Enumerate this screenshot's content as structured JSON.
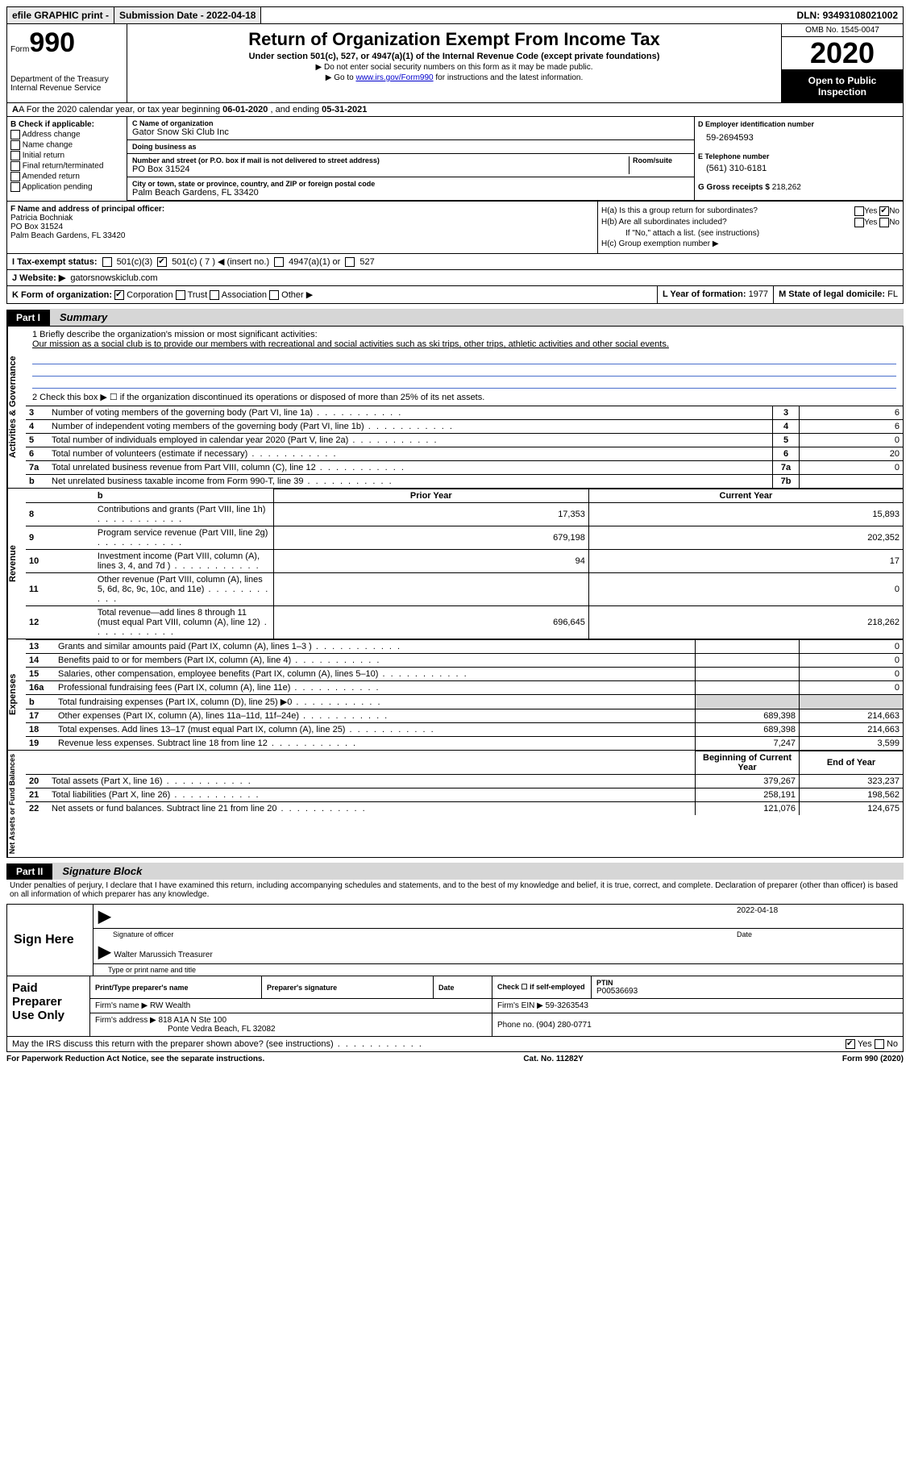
{
  "topbar": {
    "efile": "efile GRAPHIC print -",
    "submission": "Submission Date - 2022-04-18",
    "dln_label": "DLN:",
    "dln": "93493108021002"
  },
  "header": {
    "form_small": "Form",
    "form_big": "990",
    "dept": "Department of the Treasury\nInternal Revenue Service",
    "title": "Return of Organization Exempt From Income Tax",
    "sub": "Under section 501(c), 527, or 4947(a)(1) of the Internal Revenue Code (except private foundations)",
    "nossn": "▶ Do not enter social security numbers on this form as it may be made public.",
    "goto_pre": "▶ Go to ",
    "goto_link": "www.irs.gov/Form990",
    "goto_post": " for instructions and the latest information.",
    "omb": "OMB No. 1545-0047",
    "year": "2020",
    "open": "Open to Public Inspection"
  },
  "rowA": {
    "pre": "A For the 2020 calendar year, or tax year beginning ",
    "begin": "06-01-2020",
    "mid": " , and ending ",
    "end": "05-31-2021"
  },
  "colB": {
    "title": "B Check if applicable:",
    "items": [
      "Address change",
      "Name change",
      "Initial return",
      "Final return/terminated",
      "Amended return",
      "Application pending"
    ]
  },
  "colC": {
    "name_lbl": "C Name of organization",
    "name": "Gator Snow Ski Club Inc",
    "dba_lbl": "Doing business as",
    "dba": "",
    "street_lbl": "Number and street (or P.O. box if mail is not delivered to street address)",
    "room_lbl": "Room/suite",
    "street": "PO Box 31524",
    "city_lbl": "City or town, state or province, country, and ZIP or foreign postal code",
    "city": "Palm Beach Gardens, FL  33420"
  },
  "colD": {
    "ein_lbl": "D Employer identification number",
    "ein": "59-2694593",
    "phone_lbl": "E Telephone number",
    "phone": "(561) 310-6181",
    "gross_lbl": "G Gross receipts $",
    "gross": "218,262"
  },
  "colF": {
    "lbl": "F Name and address of principal officer:",
    "name": "Patricia Bochniak",
    "street": "PO Box 31524",
    "city": "Palm Beach Gardens, FL  33420"
  },
  "colH": {
    "ha": "H(a)  Is this a group return for subordinates?",
    "hb": "H(b)  Are all subordinates included?",
    "hb_note": "If \"No,\" attach a list. (see instructions)",
    "hc": "H(c)  Group exemption number ▶",
    "yes": "Yes",
    "no": "No"
  },
  "rowI": {
    "lbl": "I  Tax-exempt status:",
    "o1": "501(c)(3)",
    "o2": "501(c) ( 7 ) ◀ (insert no.)",
    "o3": "4947(a)(1) or",
    "o4": "527"
  },
  "rowJ": {
    "lbl": "J  Website: ▶",
    "val": "gatorsnowskiclub.com"
  },
  "rowK": {
    "lbl": "K Form of organization:",
    "corp": "Corporation",
    "trust": "Trust",
    "assoc": "Association",
    "other": "Other ▶",
    "L_lbl": "L Year of formation:",
    "L_val": "1977",
    "M_lbl": "M State of legal domicile:",
    "M_val": "FL"
  },
  "part1": {
    "tag": "Part I",
    "title": "Summary"
  },
  "activities": {
    "vert": "Activities & Governance",
    "l1_lbl": "1  Briefly describe the organization's mission or most significant activities:",
    "l1_val": "Our mission as a social club is to provide our members with recreational and social activities such as ski trips, other trips, athletic activities and other social events.",
    "l2": "2  Check this box ▶ ☐  if the organization discontinued its operations or disposed of more than 25% of its net assets.",
    "rows": [
      {
        "n": "3",
        "t": "Number of voting members of the governing body (Part VI, line 1a)",
        "b": "3",
        "v": "6"
      },
      {
        "n": "4",
        "t": "Number of independent voting members of the governing body (Part VI, line 1b)",
        "b": "4",
        "v": "6"
      },
      {
        "n": "5",
        "t": "Total number of individuals employed in calendar year 2020 (Part V, line 2a)",
        "b": "5",
        "v": "0"
      },
      {
        "n": "6",
        "t": "Total number of volunteers (estimate if necessary)",
        "b": "6",
        "v": "20"
      },
      {
        "n": "7a",
        "t": "Total unrelated business revenue from Part VIII, column (C), line 12",
        "b": "7a",
        "v": "0"
      },
      {
        "n": "b",
        "t": "Net unrelated business taxable income from Form 990-T, line 39",
        "b": "7b",
        "v": ""
      }
    ]
  },
  "revenue": {
    "vert": "Revenue",
    "hdr_prior": "Prior Year",
    "hdr_curr": "Current Year",
    "rows": [
      {
        "n": "8",
        "t": "Contributions and grants (Part VIII, line 1h)",
        "p": "17,353",
        "c": "15,893"
      },
      {
        "n": "9",
        "t": "Program service revenue (Part VIII, line 2g)",
        "p": "679,198",
        "c": "202,352"
      },
      {
        "n": "10",
        "t": "Investment income (Part VIII, column (A), lines 3, 4, and 7d )",
        "p": "94",
        "c": "17"
      },
      {
        "n": "11",
        "t": "Other revenue (Part VIII, column (A), lines 5, 6d, 8c, 9c, 10c, and 11e)",
        "p": "",
        "c": "0"
      },
      {
        "n": "12",
        "t": "Total revenue—add lines 8 through 11 (must equal Part VIII, column (A), line 12)",
        "p": "696,645",
        "c": "218,262"
      }
    ]
  },
  "expenses": {
    "vert": "Expenses",
    "rows": [
      {
        "n": "13",
        "t": "Grants and similar amounts paid (Part IX, column (A), lines 1–3 )",
        "p": "",
        "c": "0"
      },
      {
        "n": "14",
        "t": "Benefits paid to or for members (Part IX, column (A), line 4)",
        "p": "",
        "c": "0"
      },
      {
        "n": "15",
        "t": "Salaries, other compensation, employee benefits (Part IX, column (A), lines 5–10)",
        "p": "",
        "c": "0"
      },
      {
        "n": "16a",
        "t": "Professional fundraising fees (Part IX, column (A), line 11e)",
        "p": "",
        "c": "0"
      },
      {
        "n": "b",
        "t": "Total fundraising expenses (Part IX, column (D), line 25) ▶0",
        "p": "GREY",
        "c": "GREY"
      },
      {
        "n": "17",
        "t": "Other expenses (Part IX, column (A), lines 11a–11d, 11f–24e)",
        "p": "689,398",
        "c": "214,663"
      },
      {
        "n": "18",
        "t": "Total expenses. Add lines 13–17 (must equal Part IX, column (A), line 25)",
        "p": "689,398",
        "c": "214,663"
      },
      {
        "n": "19",
        "t": "Revenue less expenses. Subtract line 18 from line 12",
        "p": "7,247",
        "c": "3,599"
      }
    ]
  },
  "netassets": {
    "vert": "Net Assets or Fund Balances",
    "hdr_begin": "Beginning of Current Year",
    "hdr_end": "End of Year",
    "rows": [
      {
        "n": "20",
        "t": "Total assets (Part X, line 16)",
        "p": "379,267",
        "c": "323,237"
      },
      {
        "n": "21",
        "t": "Total liabilities (Part X, line 26)",
        "p": "258,191",
        "c": "198,562"
      },
      {
        "n": "22",
        "t": "Net assets or fund balances. Subtract line 21 from line 20",
        "p": "121,076",
        "c": "124,675"
      }
    ]
  },
  "part2": {
    "tag": "Part II",
    "title": "Signature Block"
  },
  "penalties": "Under penalties of perjury, I declare that I have examined this return, including accompanying schedules and statements, and to the best of my knowledge and belief, it is true, correct, and complete. Declaration of preparer (other than officer) is based on all information of which preparer has any knowledge.",
  "sign": {
    "here": "Sign Here",
    "sig_lbl": "Signature of officer",
    "date": "2022-04-18",
    "date_lbl": "Date",
    "name": "Walter Marussich Treasurer",
    "name_lbl": "Type or print name and title"
  },
  "paid": {
    "title": "Paid Preparer Use Only",
    "hdr_name": "Print/Type preparer's name",
    "hdr_sig": "Preparer's signature",
    "hdr_date": "Date",
    "hdr_self": "Check ☐ if self-employed",
    "ptin_lbl": "PTIN",
    "ptin": "P00536693",
    "firm_lbl": "Firm's name    ▶",
    "firm": "RW Wealth",
    "ein_lbl": "Firm's EIN ▶",
    "ein": "59-3263543",
    "addr_lbl": "Firm's address ▶",
    "addr1": "818 A1A N Ste 100",
    "addr2": "Ponte Vedra Beach, FL  32082",
    "phone_lbl": "Phone no.",
    "phone": "(904) 280-0771"
  },
  "discuss": {
    "q": "May the IRS discuss this return with the preparer shown above? (see instructions)",
    "yes": "Yes",
    "no": "No"
  },
  "footer": {
    "pra": "For Paperwork Reduction Act Notice, see the separate instructions.",
    "cat": "Cat. No. 11282Y",
    "form": "Form 990 (2020)"
  }
}
